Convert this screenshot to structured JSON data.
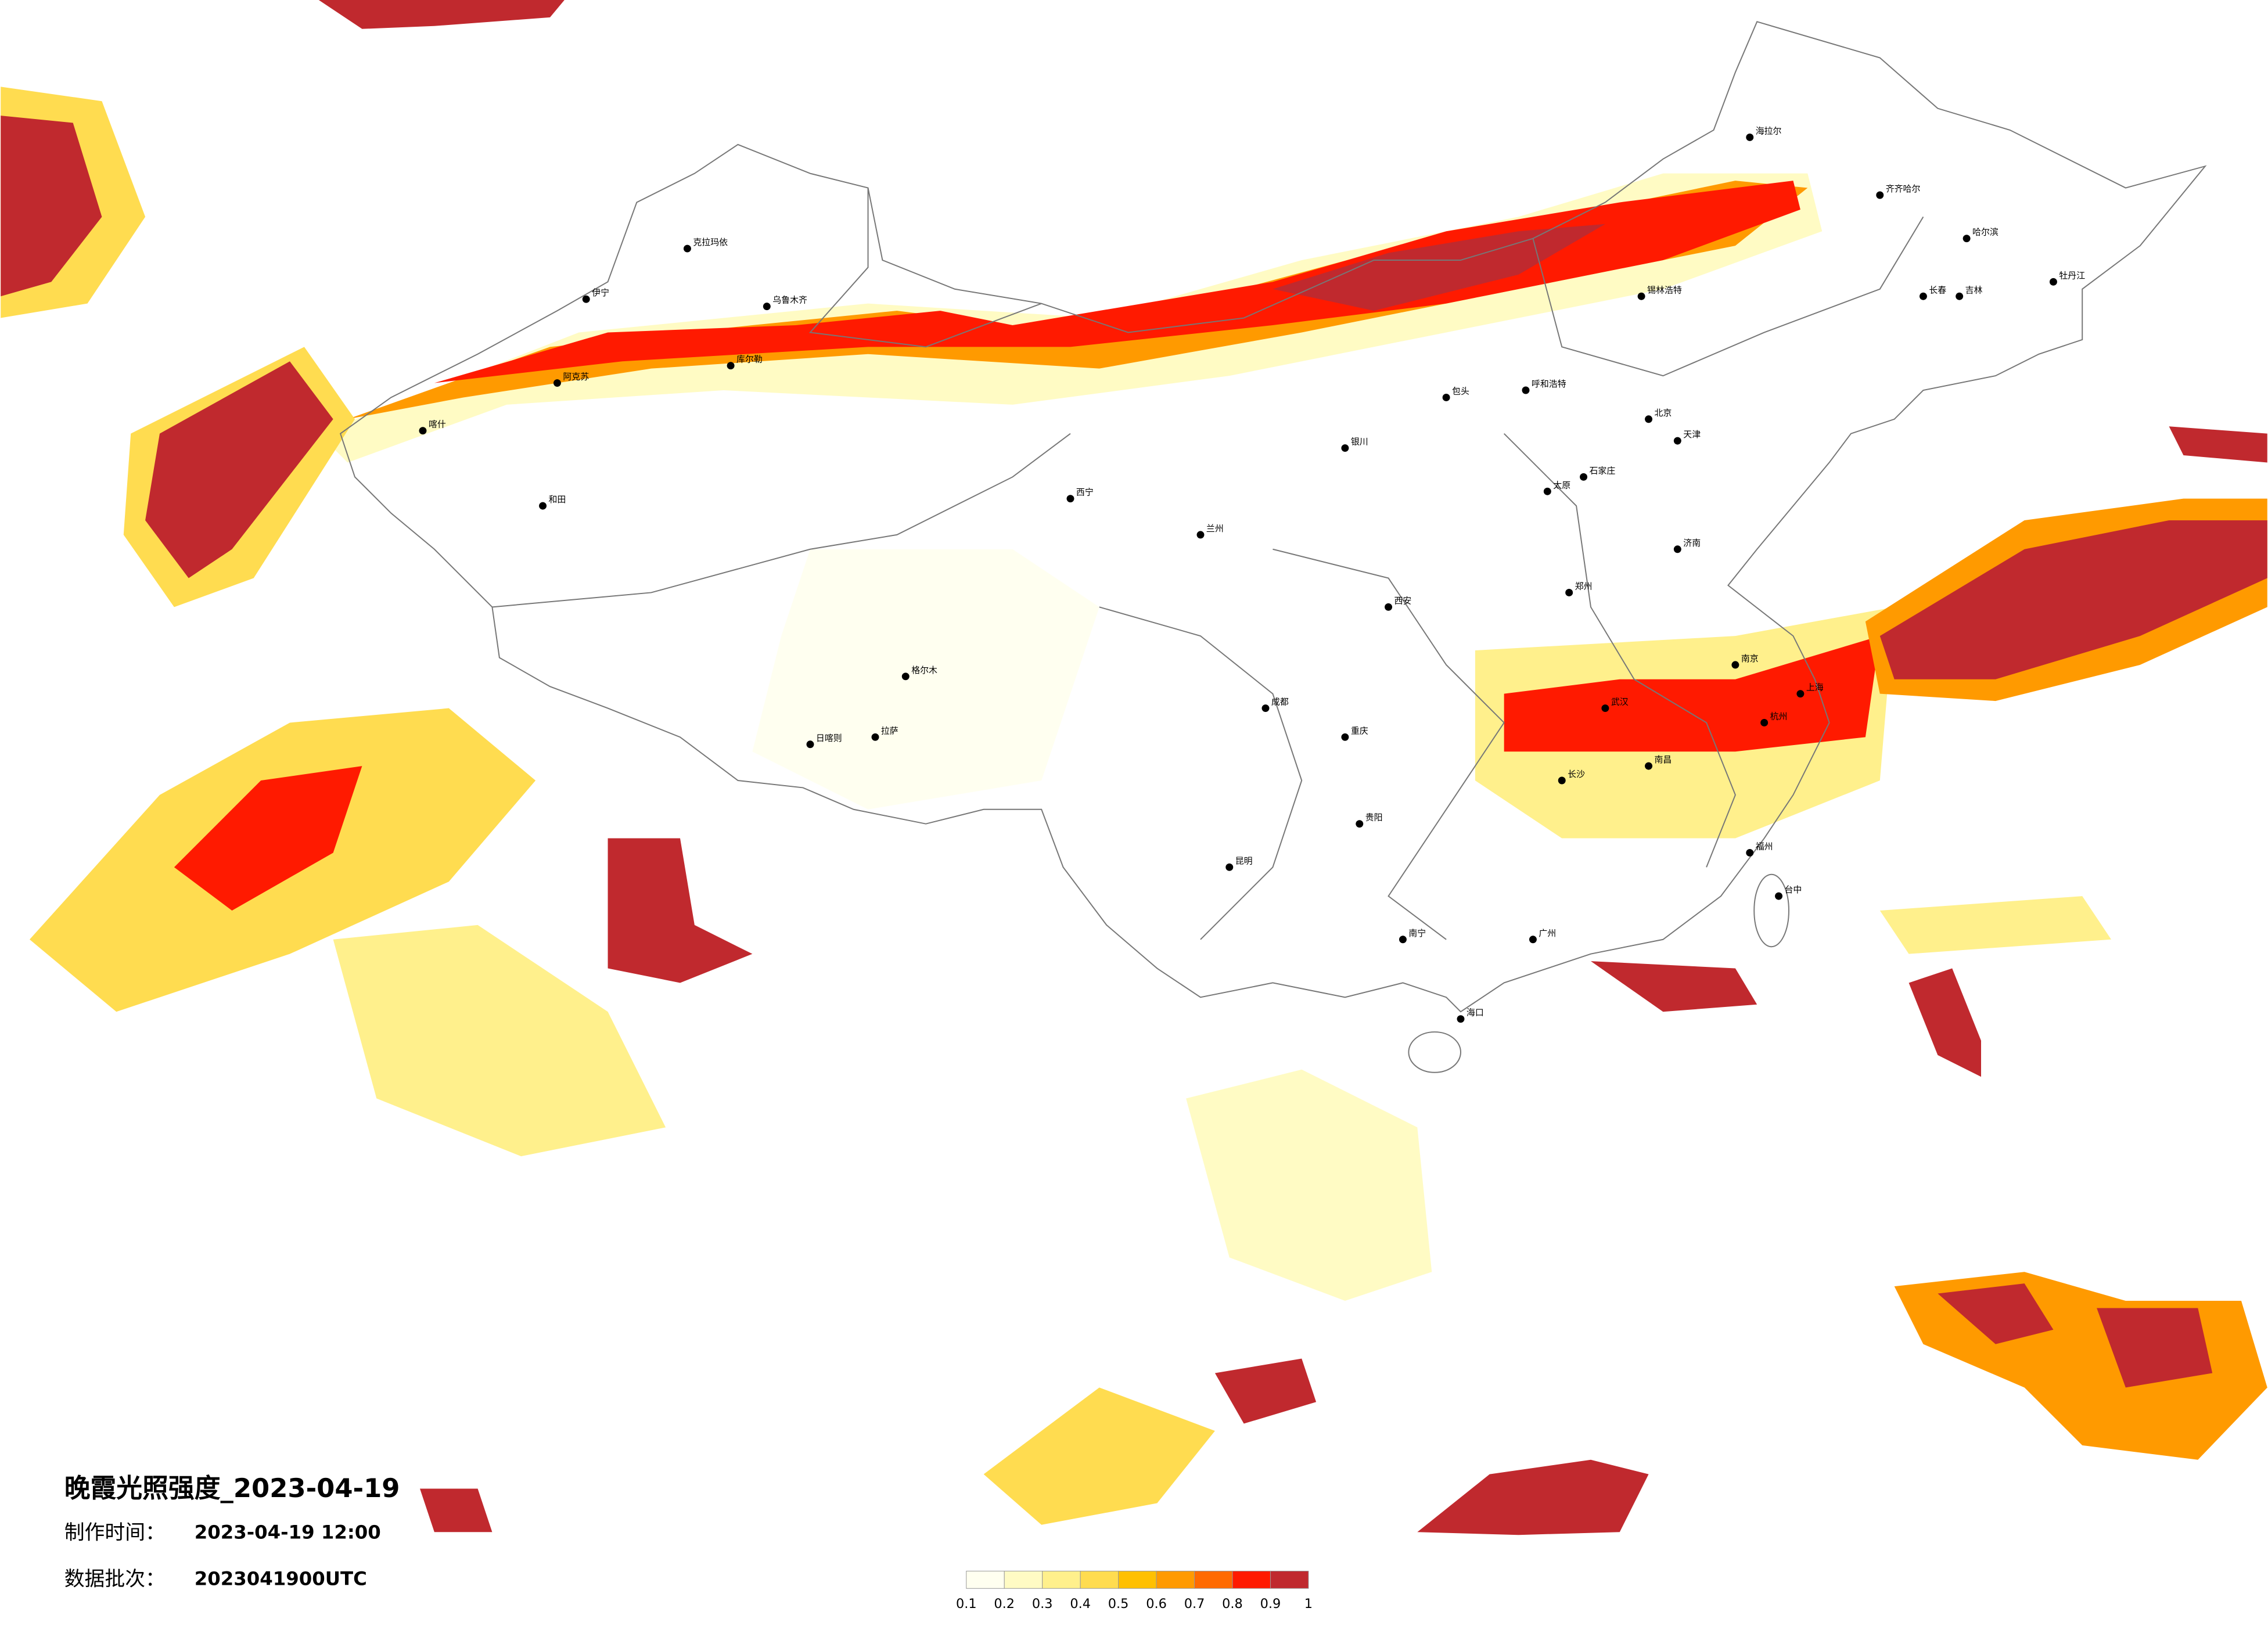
{
  "title": "晚霞光照强度_2023-04-19",
  "made_time": {
    "label": "制作时间：",
    "value": "2023-04-19 12:00"
  },
  "batch": {
    "label": "数据批次：",
    "value": "2023041900UTC"
  },
  "legend": {
    "ticks": [
      0.1,
      0.2,
      0.3,
      0.4,
      0.5,
      0.6,
      0.7,
      0.8,
      0.9,
      1
    ],
    "colors": [
      "#fffff0",
      "#fffbc4",
      "#fff08c",
      "#ffdc50",
      "#ffc000",
      "#ff9a00",
      "#ff6a00",
      "#ff1a00",
      "#c0292e"
    ]
  },
  "cities": [
    "克拉玛依",
    "伊宁",
    "阿克苏",
    "和田",
    "喀什",
    "乌鲁木齐",
    "库尔勒",
    "日喀则",
    "拉萨",
    "格尔木",
    "西宁",
    "兰州",
    "银川",
    "包头",
    "呼和浩特",
    "锡林浩特",
    "海拉尔",
    "齐齐哈尔",
    "哈尔滨",
    "长春",
    "吉林",
    "牡丹江",
    "北京",
    "天津",
    "石家庄",
    "太原",
    "济南",
    "郑州",
    "西安",
    "成都",
    "重庆",
    "贵阳",
    "昆明",
    "南宁",
    "广州",
    "海口",
    "武汉",
    "长沙",
    "南昌",
    "南京",
    "杭州",
    "上海",
    "福州",
    "台中"
  ]
}
